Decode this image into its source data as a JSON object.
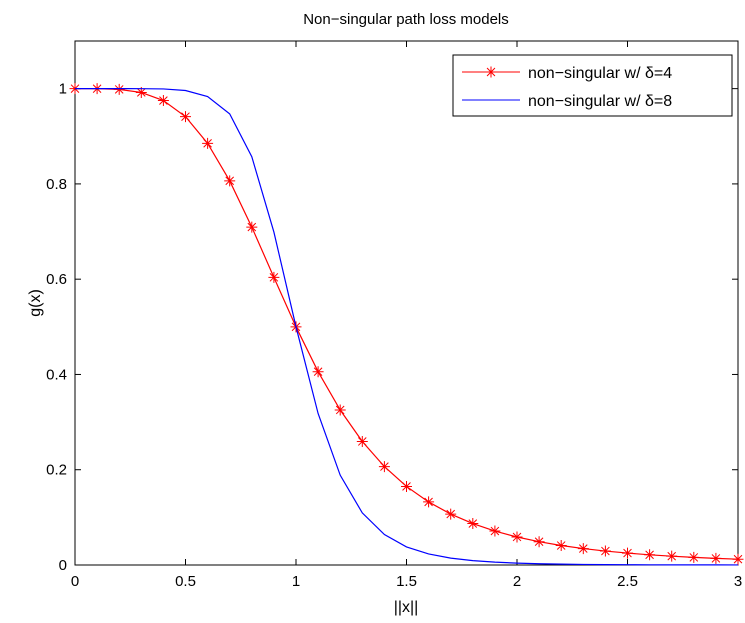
{
  "chart_data": {
    "type": "line",
    "title": "Non−singular path loss models",
    "xlabel": "||x||",
    "ylabel": "g(x)",
    "xlim": [
      0,
      3
    ],
    "ylim": [
      0,
      1.1
    ],
    "x_ticks": [
      "0",
      "0.5",
      "1",
      "1.5",
      "2",
      "2.5",
      "3"
    ],
    "y_ticks": [
      "0",
      "0.2",
      "0.4",
      "0.6",
      "0.8",
      "1"
    ],
    "grid": false,
    "legend_position": "top-right",
    "series": [
      {
        "name": "non−singular w/ δ=4",
        "color": "#ff0000",
        "marker": "asterisk",
        "x": [
          0,
          0.1,
          0.2,
          0.3,
          0.4,
          0.5,
          0.6,
          0.7,
          0.8,
          0.9,
          1.0,
          1.1,
          1.2,
          1.3,
          1.4,
          1.5,
          1.6,
          1.7,
          1.8,
          1.9,
          2.0,
          2.1,
          2.2,
          2.3,
          2.4,
          2.5,
          2.6,
          2.7,
          2.8,
          2.9,
          3.0
        ],
        "y": [
          1.0,
          0.9999,
          0.9984,
          0.992,
          0.975,
          0.9412,
          0.8852,
          0.8065,
          0.7094,
          0.6038,
          0.5,
          0.4058,
          0.3254,
          0.2593,
          0.2066,
          0.1649,
          0.1324,
          0.1069,
          0.087,
          0.0713,
          0.0588,
          0.0489,
          0.0409,
          0.0345,
          0.0293,
          0.025,
          0.0214,
          0.0185,
          0.016,
          0.0139,
          0.0122
        ]
      },
      {
        "name": "non−singular w/ δ=8",
        "color": "#0000ff",
        "marker": "none",
        "x": [
          0,
          0.1,
          0.2,
          0.3,
          0.4,
          0.5,
          0.6,
          0.7,
          0.8,
          0.9,
          1.0,
          1.1,
          1.2,
          1.3,
          1.4,
          1.5,
          1.6,
          1.7,
          1.8,
          1.9,
          2.0,
          2.1,
          2.2,
          2.3,
          2.4,
          2.5,
          2.6,
          2.7,
          2.8,
          2.9,
          3.0
        ],
        "y": [
          1.0,
          1.0,
          1.0,
          0.99993,
          0.99934,
          0.99611,
          0.98346,
          0.94703,
          0.85699,
          0.69887,
          0.5,
          0.31805,
          0.18861,
          0.10933,
          0.06396,
          0.03802,
          0.02316,
          0.01445,
          0.00922,
          0.00601,
          0.00389,
          0.0026,
          0.00176,
          0.00121,
          0.00085,
          0.00061,
          0.00044,
          0.00033,
          0.00024,
          0.00018,
          0.00015
        ]
      }
    ]
  }
}
